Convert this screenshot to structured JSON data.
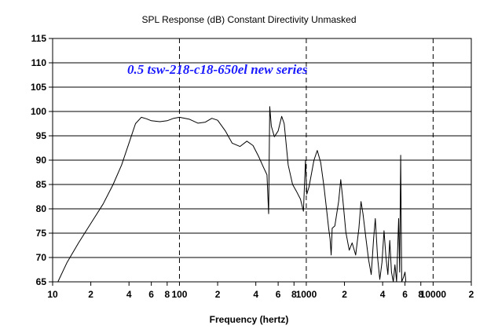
{
  "chart_data": {
    "type": "line",
    "title": "SPL Response (dB)   Constant Directivity   Unmasked",
    "xlabel": "Frequency (hertz)",
    "ylabel": "",
    "annotation": "0.5 tsw-218-c18-650el new series",
    "x_scale": "log",
    "xlim": [
      10,
      20000
    ],
    "ylim": [
      65,
      115
    ],
    "grid": true,
    "x_ticks": [
      {
        "value": 10,
        "label": "10"
      },
      {
        "value": 20,
        "label": "2"
      },
      {
        "value": 40,
        "label": "4"
      },
      {
        "value": 60,
        "label": "6"
      },
      {
        "value": 80,
        "label": "8"
      },
      {
        "value": 100,
        "label": "100"
      },
      {
        "value": 200,
        "label": "2"
      },
      {
        "value": 400,
        "label": "4"
      },
      {
        "value": 600,
        "label": "6"
      },
      {
        "value": 800,
        "label": "8"
      },
      {
        "value": 1000,
        "label": "1000"
      },
      {
        "value": 2000,
        "label": "2"
      },
      {
        "value": 4000,
        "label": "4"
      },
      {
        "value": 6000,
        "label": "6"
      },
      {
        "value": 8000,
        "label": "8"
      },
      {
        "value": 10000,
        "label": "10000"
      },
      {
        "value": 20000,
        "label": "2"
      }
    ],
    "x_major_grid": [
      10,
      100,
      1000,
      10000,
      20000
    ],
    "y_ticks": [
      65,
      70,
      75,
      80,
      85,
      90,
      95,
      100,
      105,
      110,
      115
    ],
    "series": [
      {
        "color": "#000000",
        "points": [
          [
            11,
            65
          ],
          [
            13,
            69
          ],
          [
            16,
            73
          ],
          [
            20,
            77
          ],
          [
            25,
            81
          ],
          [
            30,
            85
          ],
          [
            35,
            89
          ],
          [
            40,
            93.5
          ],
          [
            45,
            97.5
          ],
          [
            50,
            98.8
          ],
          [
            55,
            98.5
          ],
          [
            60,
            98.1
          ],
          [
            70,
            97.9
          ],
          [
            80,
            98.1
          ],
          [
            90,
            98.6
          ],
          [
            100,
            98.8
          ],
          [
            120,
            98.4
          ],
          [
            140,
            97.6
          ],
          [
            160,
            97.8
          ],
          [
            180,
            98.6
          ],
          [
            200,
            98.2
          ],
          [
            230,
            96
          ],
          [
            260,
            93.5
          ],
          [
            300,
            92.8
          ],
          [
            340,
            93.9
          ],
          [
            380,
            93
          ],
          [
            420,
            90.8
          ],
          [
            460,
            88.5
          ],
          [
            490,
            87
          ],
          [
            505,
            79
          ],
          [
            515,
            101
          ],
          [
            530,
            97
          ],
          [
            560,
            94.8
          ],
          [
            600,
            96
          ],
          [
            640,
            99
          ],
          [
            670,
            97.5
          ],
          [
            720,
            89
          ],
          [
            780,
            85
          ],
          [
            840,
            83.5
          ],
          [
            900,
            82
          ],
          [
            950,
            79.5
          ],
          [
            985,
            90
          ],
          [
            1010,
            83
          ],
          [
            1050,
            84.5
          ],
          [
            1150,
            90
          ],
          [
            1220,
            92
          ],
          [
            1300,
            89.5
          ],
          [
            1380,
            84.5
          ],
          [
            1450,
            79.5
          ],
          [
            1500,
            76
          ],
          [
            1540,
            73.8
          ],
          [
            1570,
            70.5
          ],
          [
            1600,
            76
          ],
          [
            1680,
            76.5
          ],
          [
            1800,
            81.5
          ],
          [
            1870,
            86
          ],
          [
            1940,
            82
          ],
          [
            2050,
            75.2
          ],
          [
            2180,
            71.5
          ],
          [
            2300,
            73
          ],
          [
            2450,
            70.5
          ],
          [
            2600,
            76
          ],
          [
            2700,
            81.5
          ],
          [
            2800,
            79
          ],
          [
            2950,
            74
          ],
          [
            3100,
            69.5
          ],
          [
            3250,
            66.5
          ],
          [
            3400,
            74
          ],
          [
            3500,
            78
          ],
          [
            3650,
            70
          ],
          [
            3800,
            65.5
          ],
          [
            3950,
            69
          ],
          [
            4100,
            75.5
          ],
          [
            4250,
            70
          ],
          [
            4400,
            66.5
          ],
          [
            4550,
            73.5
          ],
          [
            4700,
            67
          ],
          [
            4850,
            65
          ],
          [
            5000,
            68.5
          ],
          [
            5150,
            65
          ],
          [
            5350,
            78
          ],
          [
            5450,
            67
          ],
          [
            5550,
            91
          ],
          [
            5650,
            65
          ],
          [
            5850,
            66
          ],
          [
            6000,
            67
          ],
          [
            6100,
            65
          ]
        ]
      }
    ]
  }
}
